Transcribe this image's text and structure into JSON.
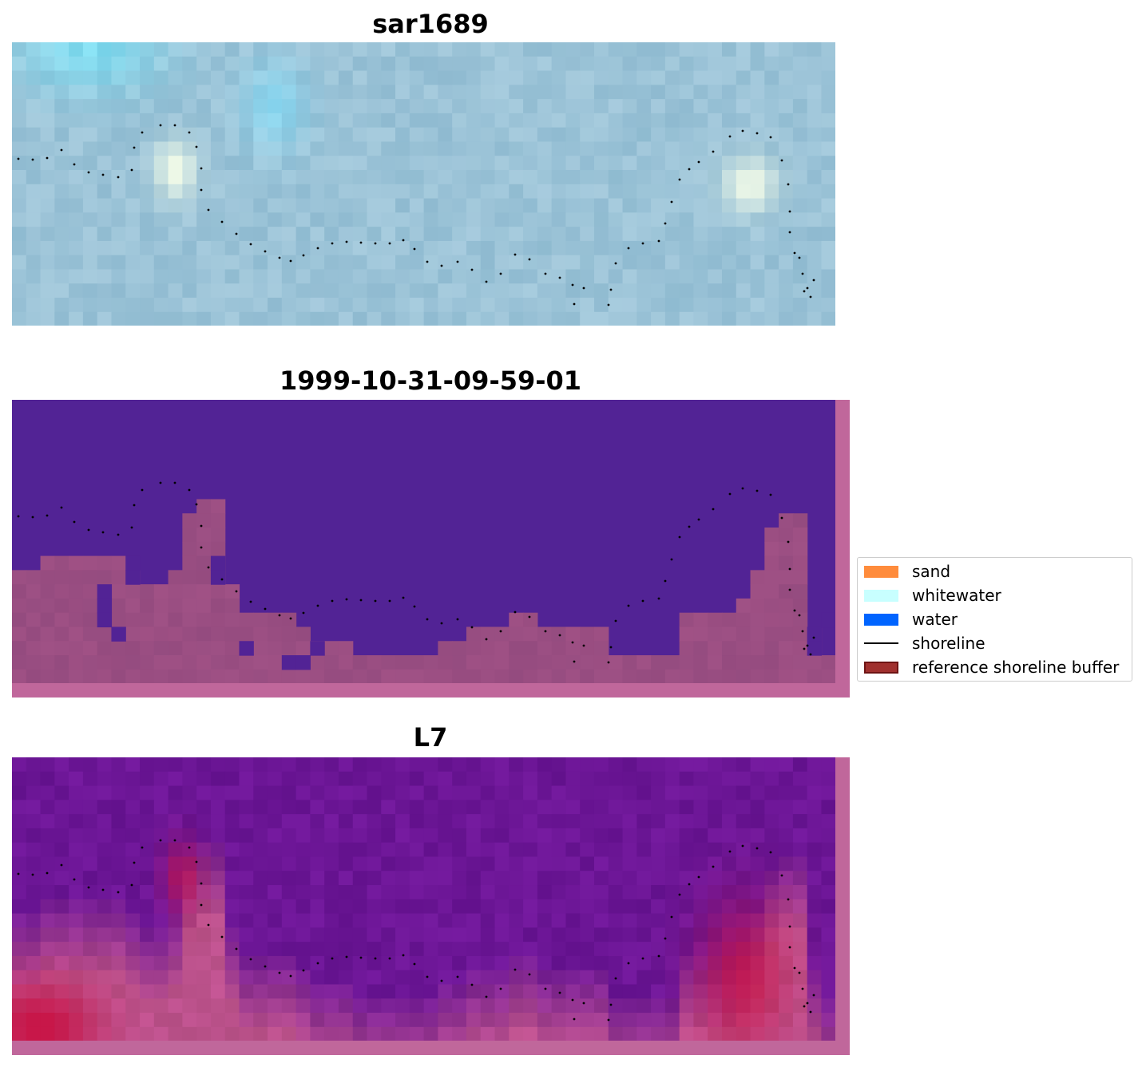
{
  "panels": [
    {
      "title": "sar1689"
    },
    {
      "title": "1999-10-31-09-59-01"
    },
    {
      "title": "L7"
    }
  ],
  "legend": {
    "items": [
      {
        "label": "sand",
        "color": "#ff8c3c",
        "kind": "patch"
      },
      {
        "label": "whitewater",
        "color": "#c8ffff",
        "kind": "patch"
      },
      {
        "label": "water",
        "color": "#0064ff",
        "kind": "patch"
      },
      {
        "label": "shoreline",
        "color": "#000000",
        "kind": "line"
      },
      {
        "label": "reference shoreline buffer",
        "color": "#a0302e",
        "edge": "#6e1414",
        "kind": "patch"
      }
    ]
  },
  "colors": {
    "water_class": "#522395",
    "buffer_overlay": "#c0679b",
    "land_class": "#9a4e82",
    "rgb_base": "#9dc3d6",
    "whitewater_spot": "#f2fbe8"
  }
}
